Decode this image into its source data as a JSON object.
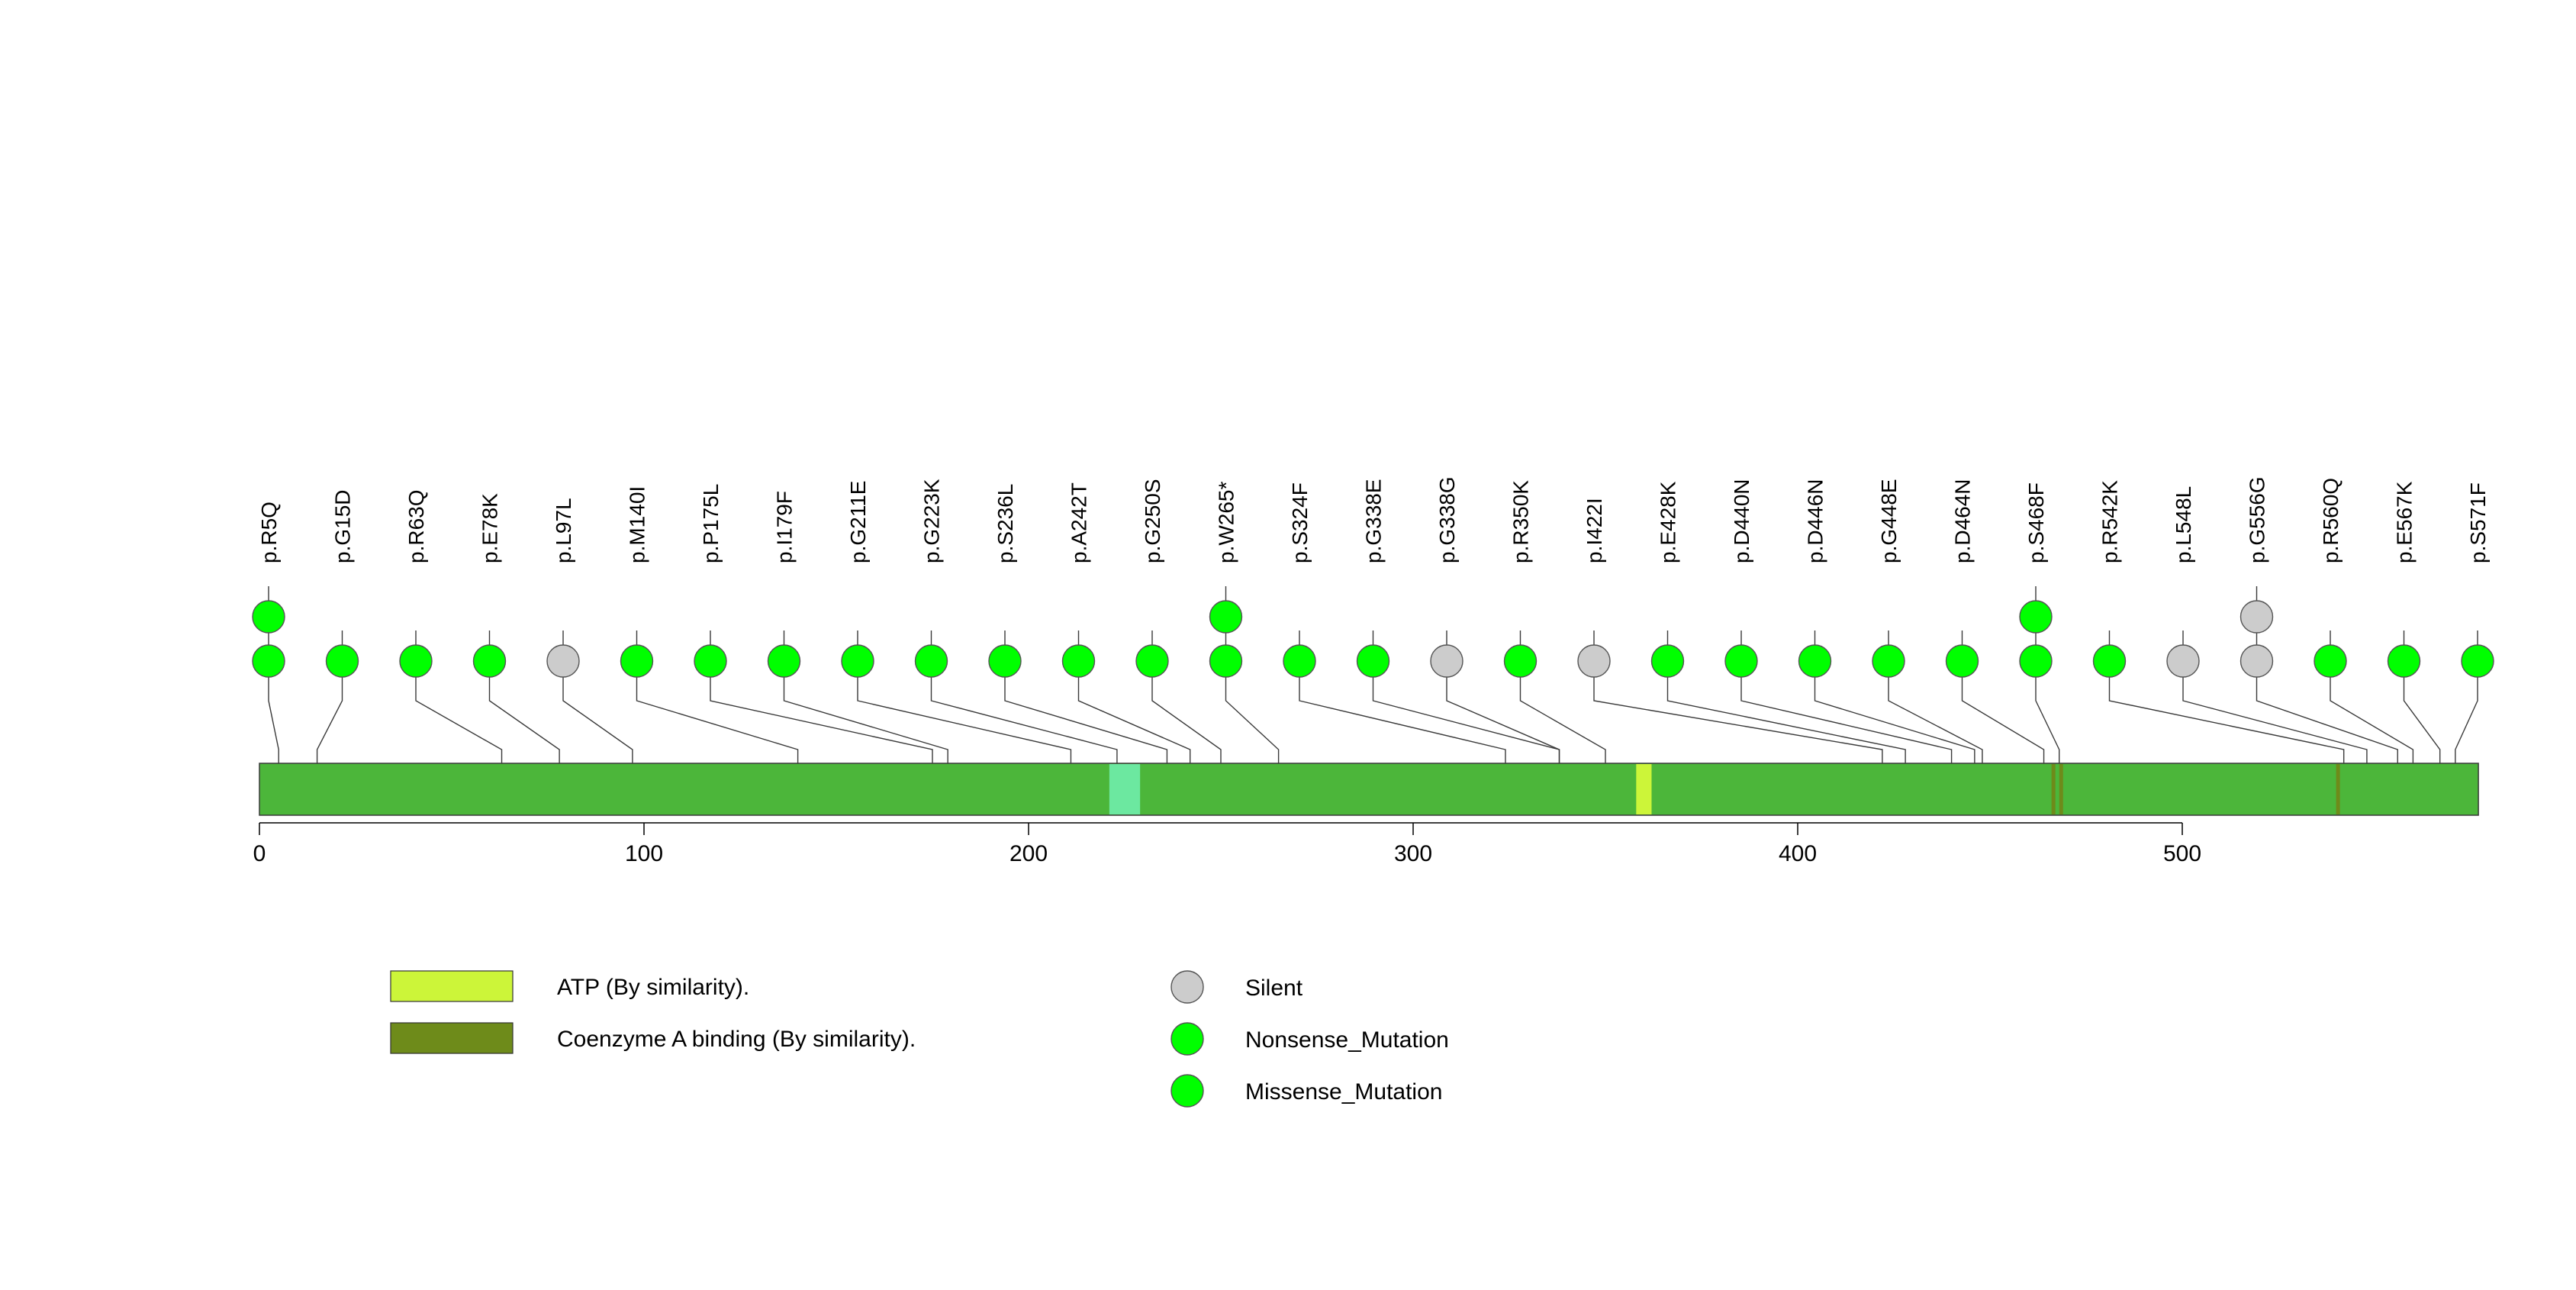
{
  "chart_data": {
    "type": "lollipop",
    "protein_length": 577,
    "x_ticks": [
      0,
      100,
      200,
      300,
      400,
      500
    ],
    "colors": {
      "backbone": "#4CB63A",
      "silent": "#CCCCCC",
      "nonsense": "#00FF00",
      "missense": "#00FF00",
      "atp": "#CCF539",
      "coa": "#6E8B1A",
      "light_region": "#6CE8A0"
    },
    "regions": [
      {
        "start": 221,
        "end": 229,
        "color": "#6CE8A0"
      },
      {
        "start": 358,
        "end": 362,
        "color": "#CCF539"
      },
      {
        "start": 466,
        "end": 467,
        "color": "#6E8B1A"
      },
      {
        "start": 468,
        "end": 469,
        "color": "#6E8B1A"
      },
      {
        "start": 540,
        "end": 541,
        "color": "#6E8B1A"
      }
    ],
    "mutations": [
      {
        "label": "p.R5Q",
        "pos": 5,
        "types": [
          "Missense_Mutation",
          "Missense_Mutation"
        ]
      },
      {
        "label": "p.G15D",
        "pos": 15,
        "types": [
          "Missense_Mutation"
        ]
      },
      {
        "label": "p.R63Q",
        "pos": 63,
        "types": [
          "Missense_Mutation"
        ]
      },
      {
        "label": "p.E78K",
        "pos": 78,
        "types": [
          "Missense_Mutation"
        ]
      },
      {
        "label": "p.L97L",
        "pos": 97,
        "types": [
          "Silent"
        ]
      },
      {
        "label": "p.M140I",
        "pos": 140,
        "types": [
          "Missense_Mutation"
        ]
      },
      {
        "label": "p.P175L",
        "pos": 175,
        "types": [
          "Missense_Mutation"
        ]
      },
      {
        "label": "p.I179F",
        "pos": 179,
        "types": [
          "Missense_Mutation"
        ]
      },
      {
        "label": "p.G211E",
        "pos": 211,
        "types": [
          "Missense_Mutation"
        ]
      },
      {
        "label": "p.G223K",
        "pos": 223,
        "types": [
          "Missense_Mutation"
        ]
      },
      {
        "label": "p.S236L",
        "pos": 236,
        "types": [
          "Missense_Mutation"
        ]
      },
      {
        "label": "p.A242T",
        "pos": 242,
        "types": [
          "Missense_Mutation"
        ]
      },
      {
        "label": "p.G250S",
        "pos": 250,
        "types": [
          "Missense_Mutation"
        ]
      },
      {
        "label": "p.W265*",
        "pos": 265,
        "types": [
          "Nonsense_Mutation",
          "Nonsense_Mutation"
        ]
      },
      {
        "label": "p.S324F",
        "pos": 324,
        "types": [
          "Missense_Mutation"
        ]
      },
      {
        "label": "p.G338E",
        "pos": 338,
        "types": [
          "Missense_Mutation"
        ]
      },
      {
        "label": "p.G338G",
        "pos": 338,
        "types": [
          "Silent"
        ]
      },
      {
        "label": "p.R350K",
        "pos": 350,
        "types": [
          "Missense_Mutation"
        ]
      },
      {
        "label": "p.I422I",
        "pos": 422,
        "types": [
          "Silent"
        ]
      },
      {
        "label": "p.E428K",
        "pos": 428,
        "types": [
          "Missense_Mutation"
        ]
      },
      {
        "label": "p.D440N",
        "pos": 440,
        "types": [
          "Missense_Mutation"
        ]
      },
      {
        "label": "p.D446N",
        "pos": 446,
        "types": [
          "Missense_Mutation"
        ]
      },
      {
        "label": "p.G448E",
        "pos": 448,
        "types": [
          "Missense_Mutation"
        ]
      },
      {
        "label": "p.D464N",
        "pos": 464,
        "types": [
          "Missense_Mutation"
        ]
      },
      {
        "label": "p.S468F",
        "pos": 468,
        "types": [
          "Missense_Mutation",
          "Missense_Mutation"
        ]
      },
      {
        "label": "p.R542K",
        "pos": 542,
        "types": [
          "Missense_Mutation"
        ]
      },
      {
        "label": "p.L548L",
        "pos": 548,
        "types": [
          "Silent"
        ]
      },
      {
        "label": "p.G556G",
        "pos": 556,
        "types": [
          "Silent",
          "Silent"
        ]
      },
      {
        "label": "p.R560Q",
        "pos": 560,
        "types": [
          "Missense_Mutation"
        ]
      },
      {
        "label": "p.E567K",
        "pos": 567,
        "types": [
          "Missense_Mutation"
        ]
      },
      {
        "label": "p.S571F",
        "pos": 571,
        "types": [
          "Missense_Mutation"
        ]
      }
    ],
    "legend": {
      "domains": [
        {
          "label": "ATP (By similarity).",
          "color": "#CCF539"
        },
        {
          "label": "Coenzyme A binding (By similarity).",
          "color": "#6E8B1A"
        }
      ],
      "mutation_types": [
        {
          "label": "Silent",
          "color": "#CCCCCC"
        },
        {
          "label": "Nonsense_Mutation",
          "color": "#00FF00"
        },
        {
          "label": "Missense_Mutation",
          "color": "#00FF00"
        }
      ]
    }
  }
}
